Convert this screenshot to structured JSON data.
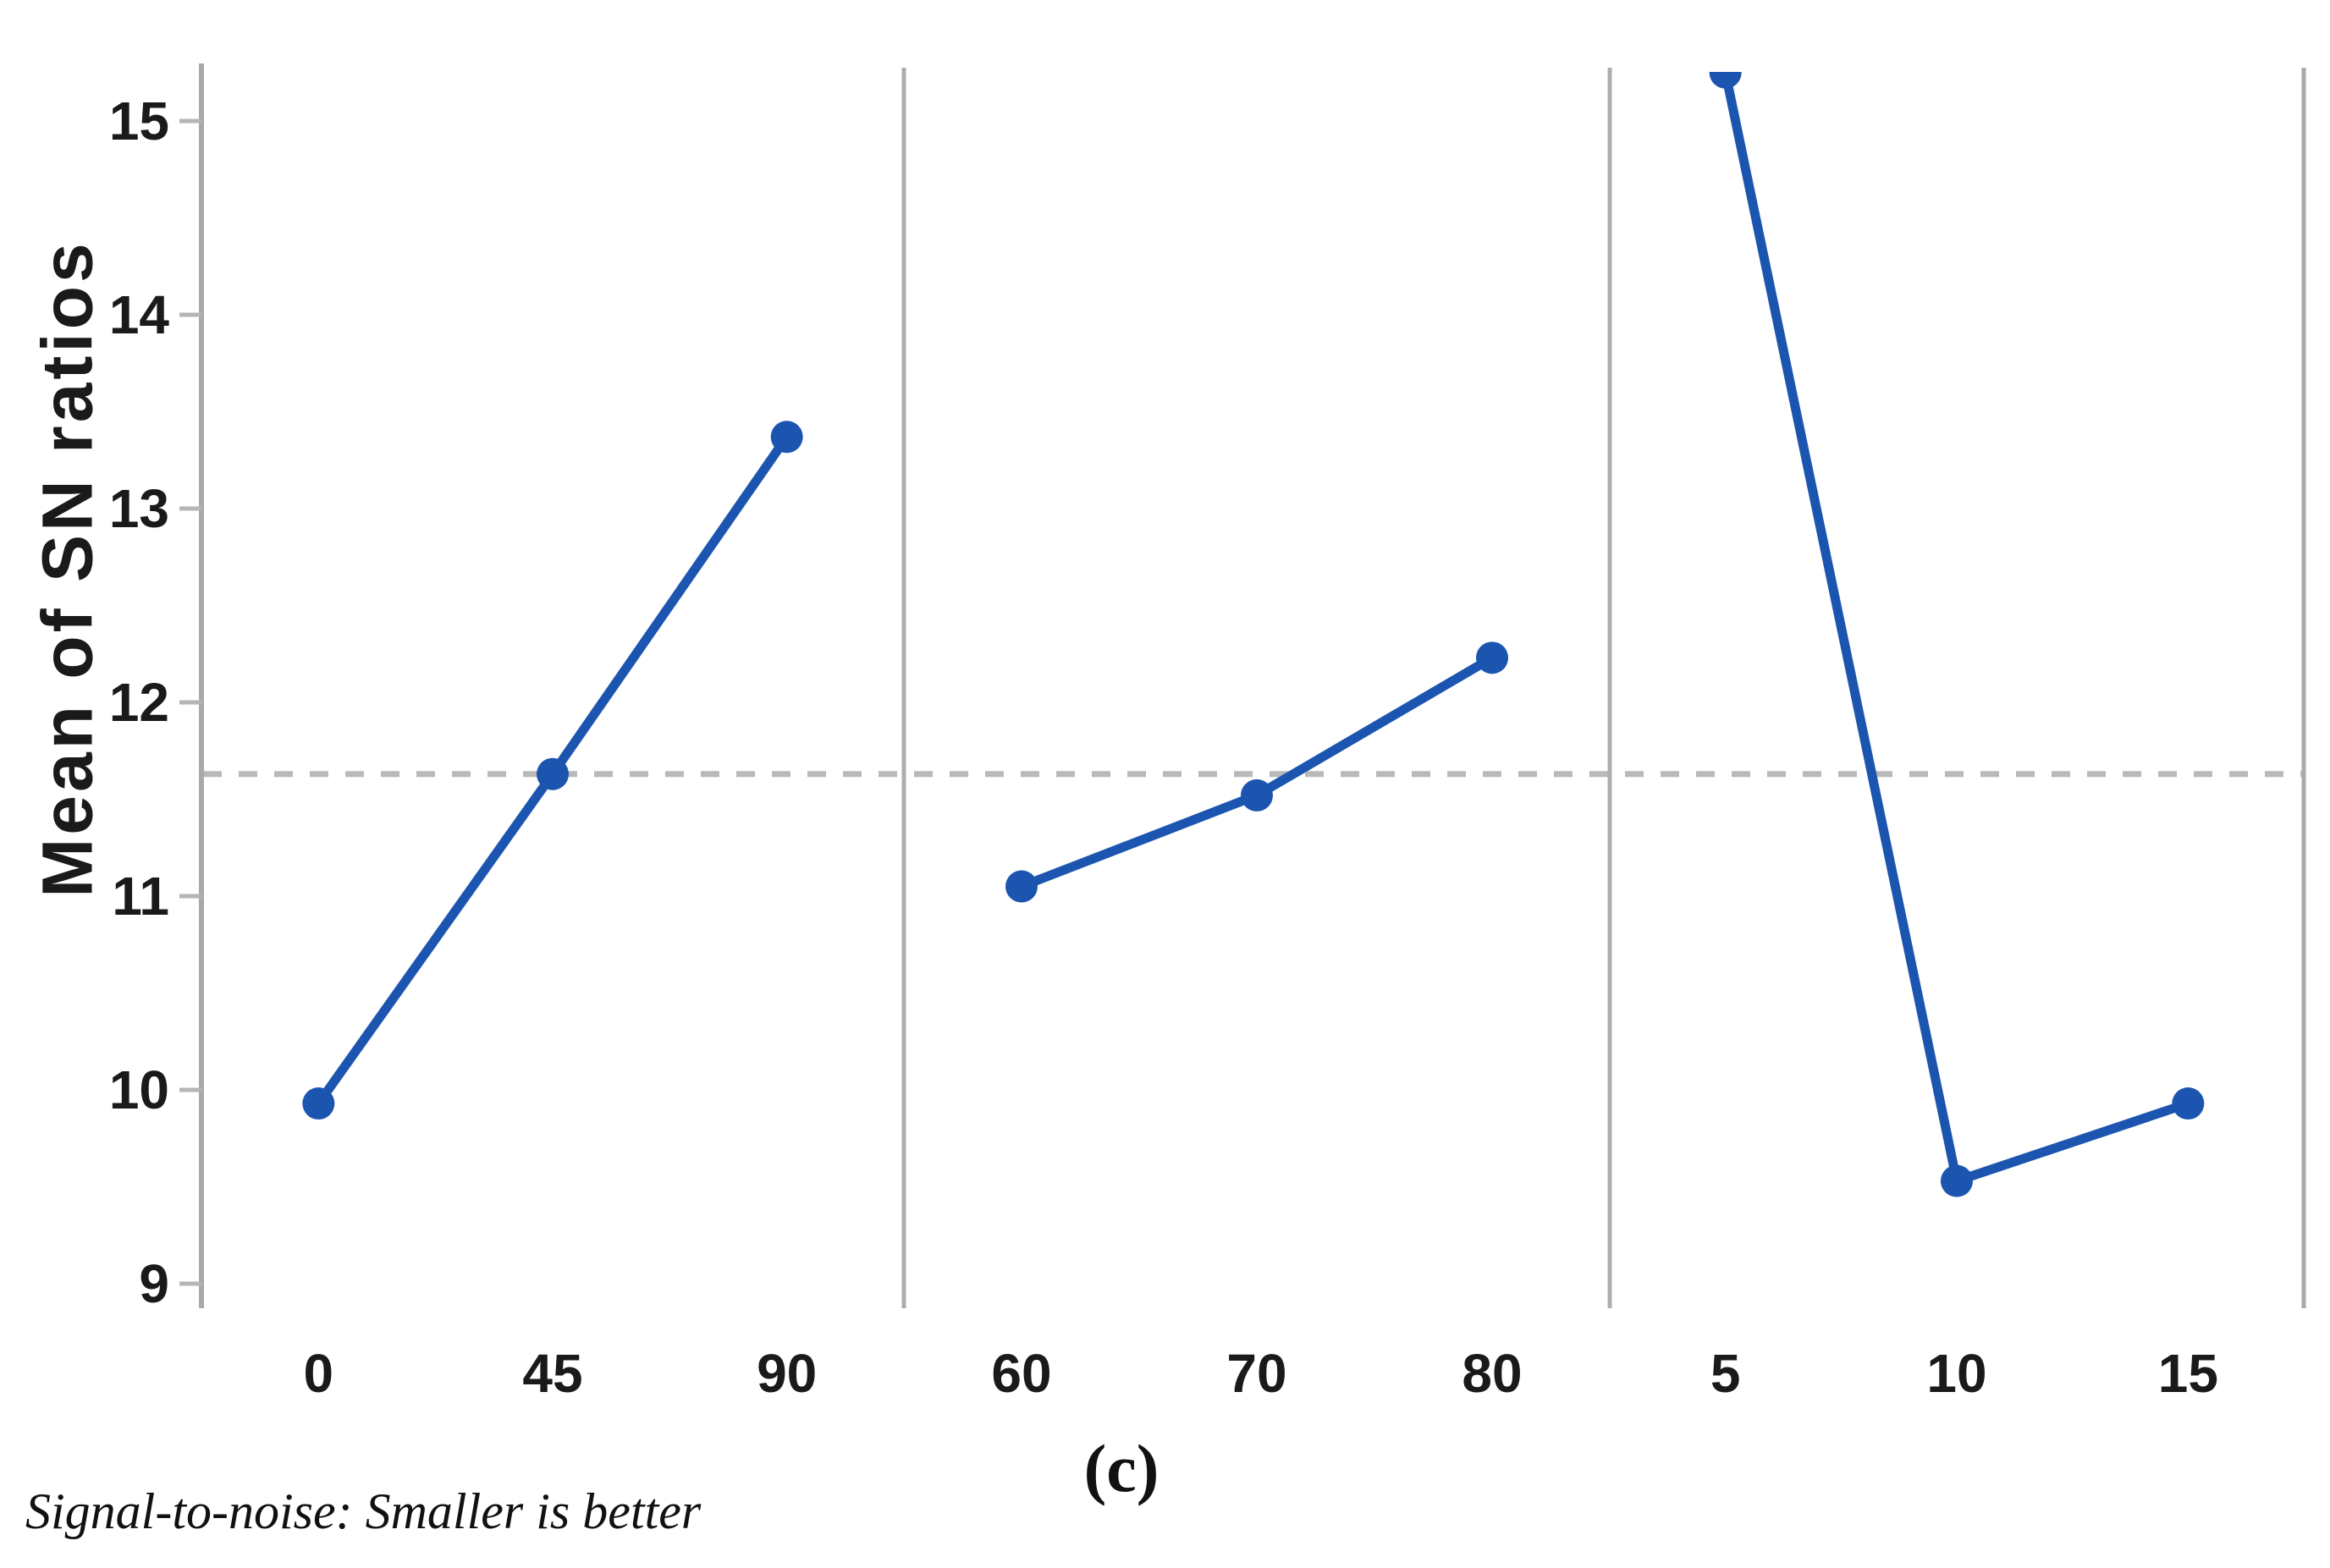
{
  "figure": {
    "ylabel": "Mean of SN ratios",
    "footnote": "Signal-to-noise: Smaller is better",
    "caption": "(c)"
  },
  "chart_data": {
    "type": "line",
    "title": "",
    "xlabel": "",
    "ylabel": "Mean of SN ratios",
    "ylim": [
      9,
      15
    ],
    "yticks": [
      15,
      14,
      13,
      12,
      11,
      10,
      9
    ],
    "grid": false,
    "legend": "none",
    "reference_line_mean": 11.63,
    "panels": [
      {
        "categories": [
          "0",
          "45",
          "90"
        ],
        "values": [
          9.93,
          11.63,
          13.37
        ]
      },
      {
        "categories": [
          "60",
          "70",
          "80"
        ],
        "values": [
          11.05,
          11.52,
          12.23
        ]
      },
      {
        "categories": [
          "5",
          "10",
          "15"
        ],
        "values": [
          15.25,
          9.53,
          9.93
        ]
      }
    ],
    "footnote": "Signal-to-noise: Smaller is better",
    "caption": "(c)",
    "colors": {
      "series": "#1c55b0",
      "axis": "#a9a9a9",
      "separator": "#adadad",
      "tick": "#b5b5b5",
      "reference_dash": "#b9b9b9",
      "text": "#1a1a1a"
    }
  }
}
